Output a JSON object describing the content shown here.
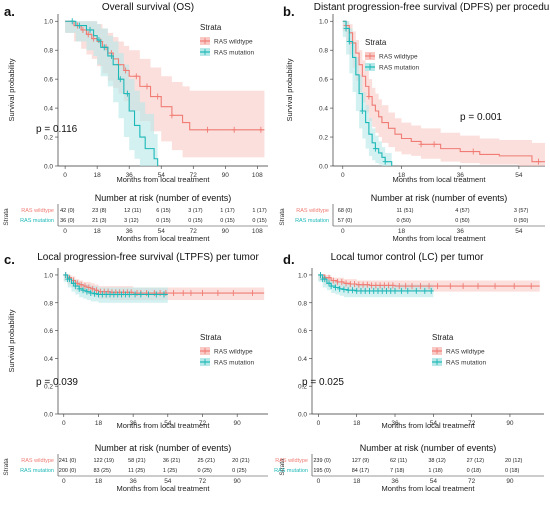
{
  "figure": {
    "colors": {
      "wildtype": "#f07c74",
      "mutation": "#1cb8b8",
      "wildtype_band": "#f9c9c5",
      "mutation_band": "#b7e8e8"
    },
    "panels": [
      {
        "panel_label": "a.",
        "title": "Overall survival (OS)",
        "ylabel": "Survival probability",
        "xlabel": "Months from local treatment",
        "yticks": [
          "0.0",
          "0.2",
          "0.4",
          "0.6",
          "0.8",
          "1.0"
        ],
        "xticks": [
          "0",
          "18",
          "36",
          "54",
          "72",
          "90",
          "108"
        ],
        "pvalue": "p = 0.116",
        "legend_title": "Strata",
        "legend_items": [
          "RAS wildtype",
          "RAS mutation"
        ],
        "risk_title": "Number at risk (number of events)",
        "risk_strata_label": "Strata",
        "risk_rows": [
          {
            "label": "RAS wildtype",
            "values": [
              "42 (0)",
              "23 (8)",
              "12 (11)",
              "6 (15)",
              "3 (17)",
              "1 (17)",
              "1 (17)"
            ]
          },
          {
            "label": "RAS mutation",
            "values": [
              "36 (0)",
              "21 (3)",
              "3 (12)",
              "0 (15)",
              "0 (15)",
              "0 (15)",
              "0 (15)"
            ]
          }
        ],
        "risk_xlabel": "Months from local treatment"
      },
      {
        "panel_label": "b.",
        "title": "Distant progression-free survival (DPFS) per procedure",
        "ylabel": "Survival probability",
        "xlabel": "Months from local treatment",
        "yticks": [
          "0.0",
          "0.2",
          "0.4",
          "0.6",
          "0.8",
          "1.0"
        ],
        "xticks": [
          "0",
          "18",
          "36",
          "54"
        ],
        "pvalue": "p = 0.001",
        "legend_title": "Strata",
        "legend_items": [
          "RAS wildtype",
          "RAS mutation"
        ],
        "risk_title": "Number at risk (number of events)",
        "risk_strata_label": "Strata",
        "risk_rows": [
          {
            "label": "RAS wildtype",
            "values": [
              "68 (0)",
              "11 (51)",
              "4 (57)",
              "3 (57)"
            ]
          },
          {
            "label": "RAS mutation",
            "values": [
              "57 (0)",
              "0 (50)",
              "0 (50)",
              "0 (50)"
            ]
          }
        ],
        "risk_xlabel": "Months from local treatment"
      },
      {
        "panel_label": "c.",
        "title": "Local progression-free survival (LTPFS) per tumor",
        "ylabel": "Survival probability",
        "xlabel": "Months from local treatment",
        "yticks": [
          "0.0",
          "0.2",
          "0.4",
          "0.6",
          "0.8",
          "1.0"
        ],
        "xticks": [
          "0",
          "18",
          "36",
          "54",
          "72",
          "90"
        ],
        "pvalue": "p = 0.039",
        "legend_title": "Strata",
        "legend_items": [
          "RAS wildtype",
          "RAS mutation"
        ],
        "risk_title": "Number at risk (number of events)",
        "risk_strata_label": "Strata",
        "risk_rows": [
          {
            "label": "RAS wildtype",
            "values": [
              "241 (0)",
              "122 (19)",
              "58 (21)",
              "36 (21)",
              "25 (21)",
              "20 (21)"
            ]
          },
          {
            "label": "RAS mutation",
            "values": [
              "200 (0)",
              "83 (25)",
              "11 (25)",
              "1 (25)",
              "0 (25)",
              "0 (25)"
            ]
          }
        ],
        "risk_xlabel": "Months from local treatment"
      },
      {
        "panel_label": "d.",
        "title": "Local tumor control (LC) per tumor",
        "ylabel": "",
        "xlabel": "Months from local treatment",
        "yticks": [
          "0.0",
          "0.2",
          "0.4",
          "0.6",
          "0.8",
          "1.0"
        ],
        "xticks": [
          "0",
          "18",
          "36",
          "54",
          "72",
          "90"
        ],
        "pvalue": "p = 0.025",
        "legend_title": "Strata",
        "legend_items": [
          "RAS wildtype",
          "RAS mutation"
        ],
        "risk_title": "Number at risk (number of events)",
        "risk_strata_label": "Strata",
        "risk_rows": [
          {
            "label": "RAS wildtype",
            "values": [
              "239 (0)",
              "127 (9)",
              "62 (11)",
              "38 (12)",
              "27 (12)",
              "20 (12)"
            ]
          },
          {
            "label": "RAS mutation",
            "values": [
              "195 (0)",
              "84 (17)",
              "7 (18)",
              "1 (18)",
              "0 (18)",
              "0 (18)"
            ]
          }
        ],
        "risk_xlabel": "Months from local treatment"
      }
    ]
  },
  "chart_data": [
    {
      "type": "line",
      "step": true,
      "title": "Overall survival (OS)",
      "xlabel": "Months from local treatment",
      "ylabel": "Survival probability",
      "xlim": [
        -4,
        114
      ],
      "ylim": [
        0,
        1.05
      ],
      "series": [
        {
          "name": "RAS wildtype",
          "x": [
            0,
            5,
            9,
            12,
            15,
            18,
            21,
            24,
            27,
            30,
            33,
            36,
            42,
            48,
            54,
            60,
            66,
            70,
            112
          ],
          "y": [
            1,
            0.97,
            0.94,
            0.91,
            0.88,
            0.86,
            0.82,
            0.78,
            0.74,
            0.7,
            0.66,
            0.62,
            0.55,
            0.48,
            0.41,
            0.35,
            0.3,
            0.25,
            0.25
          ],
          "lower": [
            1,
            0.92,
            0.86,
            0.81,
            0.77,
            0.74,
            0.69,
            0.64,
            0.59,
            0.54,
            0.5,
            0.45,
            0.38,
            0.31,
            0.24,
            0.17,
            0.11,
            0.06,
            0.06
          ],
          "upper": [
            1,
            1,
            1,
            1,
            1,
            0.98,
            0.95,
            0.92,
            0.89,
            0.86,
            0.83,
            0.8,
            0.74,
            0.68,
            0.62,
            0.58,
            0.55,
            0.52,
            0.52
          ],
          "censor_x": [
            7,
            10,
            13,
            16,
            20,
            23,
            26,
            30,
            34,
            40,
            46,
            52,
            60,
            80,
            95,
            110
          ]
        },
        {
          "name": "RAS mutation",
          "x": [
            0,
            6,
            12,
            16,
            18,
            20,
            24,
            27,
            30,
            33,
            36,
            39,
            42,
            45,
            48,
            50,
            52
          ],
          "y": [
            1,
            0.97,
            0.94,
            0.9,
            0.87,
            0.82,
            0.76,
            0.7,
            0.6,
            0.5,
            0.38,
            0.28,
            0.2,
            0.12,
            0.12,
            0.05,
            0
          ],
          "lower": [
            1,
            0.92,
            0.86,
            0.8,
            0.76,
            0.7,
            0.62,
            0.55,
            0.44,
            0.33,
            0.2,
            0.11,
            0.05,
            0,
            0,
            0,
            0
          ],
          "upper": [
            1,
            1,
            1,
            1,
            0.98,
            0.95,
            0.9,
            0.86,
            0.78,
            0.7,
            0.6,
            0.52,
            0.44,
            0.36,
            0.36,
            0.22,
            0.1
          ],
          "censor_x": [
            4,
            8,
            14,
            19,
            22,
            26,
            31,
            35
          ]
        }
      ],
      "annotations": [
        "p = 0.116"
      ]
    },
    {
      "type": "line",
      "step": true,
      "title": "Distant progression-free survival (DPFS) per procedure",
      "xlabel": "Months from local treatment",
      "ylabel": "Survival probability",
      "xlim": [
        -3,
        62
      ],
      "ylim": [
        0,
        1.05
      ],
      "series": [
        {
          "name": "RAS wildtype",
          "x": [
            0,
            1,
            2,
            3,
            4,
            5,
            6,
            7,
            8,
            9,
            10,
            11,
            12,
            14,
            16,
            18,
            21,
            24,
            30,
            36,
            42,
            48,
            54,
            58,
            62
          ],
          "y": [
            1,
            0.97,
            0.92,
            0.85,
            0.78,
            0.7,
            0.62,
            0.55,
            0.48,
            0.42,
            0.38,
            0.34,
            0.3,
            0.26,
            0.22,
            0.19,
            0.17,
            0.15,
            0.12,
            0.1,
            0.08,
            0.07,
            0.07,
            0.03,
            0.03
          ],
          "lower": [
            1,
            0.93,
            0.86,
            0.77,
            0.68,
            0.59,
            0.51,
            0.44,
            0.37,
            0.31,
            0.27,
            0.23,
            0.2,
            0.16,
            0.13,
            0.1,
            0.08,
            0.07,
            0.05,
            0.03,
            0.02,
            0.01,
            0.01,
            0,
            0
          ],
          "upper": [
            1,
            1,
            0.98,
            0.93,
            0.87,
            0.8,
            0.73,
            0.66,
            0.6,
            0.54,
            0.5,
            0.46,
            0.42,
            0.37,
            0.33,
            0.3,
            0.28,
            0.26,
            0.23,
            0.21,
            0.19,
            0.18,
            0.18,
            0.16,
            0.16
          ],
          "censor_x": [
            1,
            3,
            8,
            24,
            28,
            40,
            60
          ]
        },
        {
          "name": "RAS mutation",
          "x": [
            0,
            1,
            2,
            3,
            4,
            5,
            6,
            7,
            8,
            9,
            10,
            11,
            12,
            13,
            15
          ],
          "y": [
            1,
            0.95,
            0.86,
            0.75,
            0.63,
            0.5,
            0.38,
            0.3,
            0.22,
            0.16,
            0.12,
            0.09,
            0.06,
            0.03,
            0
          ],
          "lower": [
            1,
            0.89,
            0.77,
            0.64,
            0.51,
            0.38,
            0.26,
            0.19,
            0.12,
            0.07,
            0.04,
            0.02,
            0.01,
            0,
            0
          ],
          "upper": [
            1,
            1,
            0.95,
            0.86,
            0.75,
            0.63,
            0.51,
            0.42,
            0.33,
            0.26,
            0.21,
            0.17,
            0.13,
            0.09,
            0.05
          ],
          "censor_x": [
            1,
            2,
            6,
            10,
            13
          ]
        }
      ],
      "annotations": [
        "p = 0.001"
      ]
    },
    {
      "type": "line",
      "step": true,
      "title": "Local progression-free survival (LTPFS) per tumor",
      "xlabel": "Months from local treatment",
      "ylabel": "Survival probability",
      "xlim": [
        -3,
        106
      ],
      "ylim": [
        0,
        1.05
      ],
      "series": [
        {
          "name": "RAS wildtype",
          "x": [
            0,
            2,
            4,
            6,
            8,
            10,
            12,
            14,
            16,
            18,
            24,
            36,
            54,
            104
          ],
          "y": [
            1,
            0.98,
            0.96,
            0.94,
            0.93,
            0.92,
            0.91,
            0.9,
            0.89,
            0.88,
            0.875,
            0.87,
            0.87,
            0.87
          ],
          "lower": [
            1,
            0.96,
            0.93,
            0.91,
            0.89,
            0.88,
            0.87,
            0.86,
            0.85,
            0.84,
            0.83,
            0.82,
            0.82,
            0.82
          ],
          "upper": [
            1,
            1,
            0.99,
            0.97,
            0.96,
            0.95,
            0.95,
            0.94,
            0.93,
            0.92,
            0.92,
            0.91,
            0.91,
            0.91
          ],
          "censor_x": [
            1,
            3,
            5,
            7,
            9,
            11,
            13,
            15,
            17,
            19,
            21,
            23,
            25,
            27,
            29,
            31,
            33,
            35,
            38,
            40,
            43,
            47,
            50,
            53,
            57,
            62,
            66,
            72,
            80,
            88,
            98
          ]
        },
        {
          "name": "RAS mutation",
          "x": [
            0,
            2,
            4,
            6,
            8,
            10,
            12,
            14,
            16,
            18,
            24,
            36,
            54
          ],
          "y": [
            1,
            0.97,
            0.94,
            0.92,
            0.9,
            0.89,
            0.88,
            0.87,
            0.865,
            0.86,
            0.86,
            0.86,
            0.86
          ],
          "lower": [
            1,
            0.95,
            0.91,
            0.88,
            0.86,
            0.84,
            0.83,
            0.82,
            0.81,
            0.81,
            0.8,
            0.8,
            0.8
          ],
          "upper": [
            1,
            0.99,
            0.97,
            0.96,
            0.94,
            0.93,
            0.93,
            0.92,
            0.92,
            0.91,
            0.91,
            0.91,
            0.91
          ],
          "censor_x": [
            1,
            2,
            3,
            5,
            6,
            8,
            10,
            12,
            14,
            16,
            18,
            20,
            22,
            24,
            26,
            28,
            30,
            32,
            34,
            37,
            40,
            44,
            48,
            52
          ]
        }
      ],
      "annotations": [
        "p = 0.039"
      ]
    },
    {
      "type": "line",
      "step": true,
      "title": "Local tumor control (LC) per tumor",
      "xlabel": "Months from local treatment",
      "ylabel": "",
      "xlim": [
        -3,
        106
      ],
      "ylim": [
        0,
        1.05
      ],
      "series": [
        {
          "name": "RAS wildtype",
          "x": [
            0,
            3,
            6,
            9,
            12,
            15,
            18,
            24,
            36,
            54,
            104
          ],
          "y": [
            1,
            0.98,
            0.96,
            0.95,
            0.94,
            0.935,
            0.93,
            0.925,
            0.92,
            0.92,
            0.92
          ],
          "lower": [
            1,
            0.96,
            0.93,
            0.92,
            0.91,
            0.9,
            0.89,
            0.88,
            0.88,
            0.88,
            0.88
          ],
          "upper": [
            1,
            1,
            0.98,
            0.98,
            0.97,
            0.97,
            0.96,
            0.96,
            0.96,
            0.96,
            0.96
          ],
          "censor_x": [
            1,
            3,
            5,
            7,
            9,
            11,
            13,
            15,
            17,
            19,
            21,
            23,
            25,
            27,
            29,
            31,
            33,
            35,
            38,
            41,
            44,
            48,
            52,
            56,
            62,
            68,
            75,
            83,
            92,
            100
          ]
        },
        {
          "name": "RAS mutation",
          "x": [
            0,
            2,
            4,
            6,
            8,
            10,
            12,
            14,
            18,
            24,
            36,
            54
          ],
          "y": [
            1,
            0.97,
            0.94,
            0.92,
            0.91,
            0.9,
            0.895,
            0.89,
            0.885,
            0.885,
            0.885,
            0.885
          ],
          "lower": [
            1,
            0.95,
            0.91,
            0.89,
            0.87,
            0.86,
            0.85,
            0.84,
            0.84,
            0.84,
            0.84,
            0.84
          ],
          "upper": [
            1,
            0.99,
            0.97,
            0.96,
            0.95,
            0.94,
            0.94,
            0.93,
            0.93,
            0.93,
            0.93,
            0.93
          ],
          "censor_x": [
            1,
            2,
            3,
            5,
            6,
            8,
            10,
            12,
            14,
            16,
            18,
            20,
            22,
            24,
            26,
            28,
            30,
            32,
            34,
            36,
            39,
            42,
            46,
            50,
            53
          ]
        }
      ],
      "annotations": [
        "p = 0.025"
      ]
    }
  ]
}
